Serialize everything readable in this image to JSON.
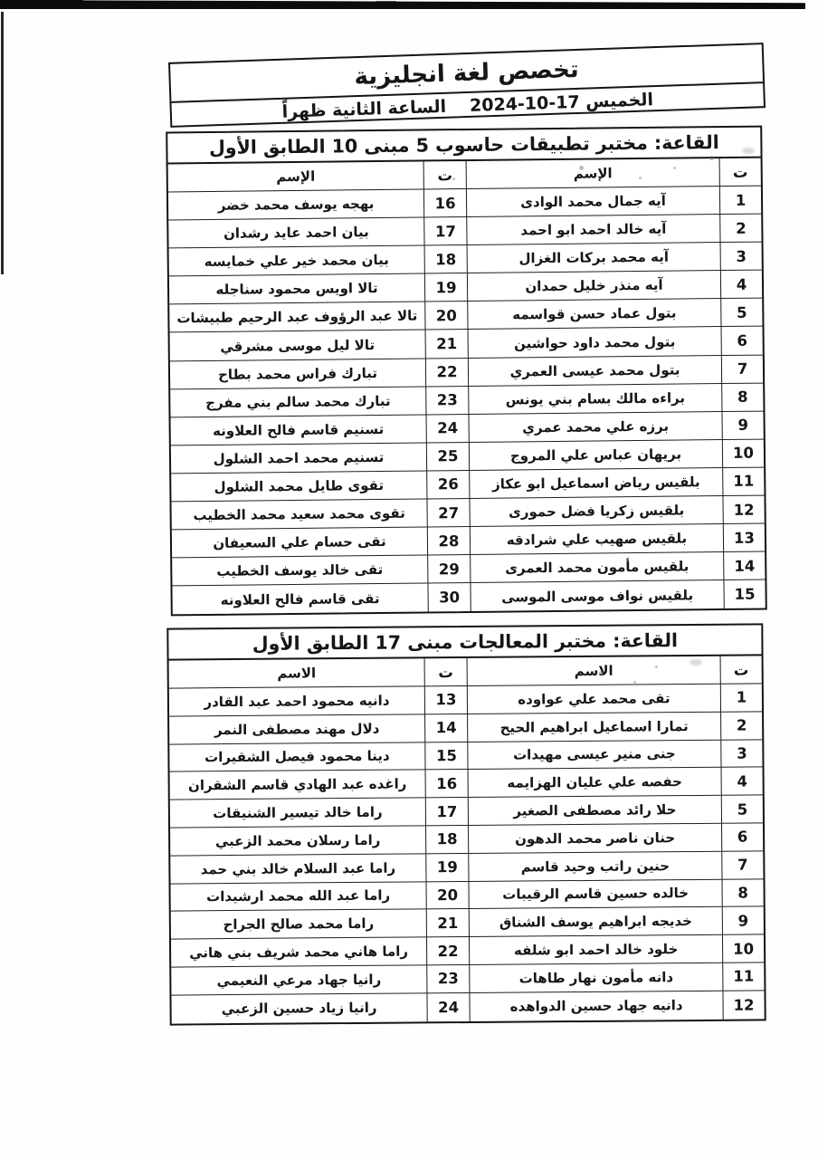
{
  "page": {
    "ink": "#141414",
    "background": "#fefefe"
  },
  "header": {
    "title": "تخصص لغة انجليزية",
    "day_and_date": "الخميس 17-10-2024",
    "time_text": "الساعة الثانية ظهراً"
  },
  "tables": [
    {
      "room": "القاعة: مختبر تطبيقات حاسوب 5 مبنى 10 الطابق الأول",
      "serial_header": "ت",
      "name_header": "الإسم",
      "rows": [
        {
          "right_no": "1",
          "right_name": "آيه جمال محمد الوادى",
          "left_no": "16",
          "left_name": "بهجه يوسف محمد خضر"
        },
        {
          "right_no": "2",
          "right_name": "آيه خالد احمد ابو احمد",
          "left_no": "17",
          "left_name": "بيان احمد عايد رشدان"
        },
        {
          "right_no": "3",
          "right_name": "آيه محمد بركات الغزال",
          "left_no": "18",
          "left_name": "بيان محمد خير علي خمايسه"
        },
        {
          "right_no": "4",
          "right_name": "آيه منذر خليل حمدان",
          "left_no": "19",
          "left_name": "تالا اويس محمود سناجله"
        },
        {
          "right_no": "5",
          "right_name": "بتول عماد حسن قواسمه",
          "left_no": "20",
          "left_name": "تالا عبد الرؤوف عبد الرحيم طبيشات"
        },
        {
          "right_no": "6",
          "right_name": "بتول محمد داود حواشين",
          "left_no": "21",
          "left_name": "تالا ليل موسى مشرقي"
        },
        {
          "right_no": "7",
          "right_name": "بتول محمد عيسى العمري",
          "left_no": "22",
          "left_name": "تبارك فراس محمد بطاح"
        },
        {
          "right_no": "8",
          "right_name": "براءه مالك بسام بني يونس",
          "left_no": "23",
          "left_name": "تبارك محمد سالم بني مفرج"
        },
        {
          "right_no": "9",
          "right_name": "برزه علي محمد عمري",
          "left_no": "24",
          "left_name": "تسنيم قاسم فالح العلاونه"
        },
        {
          "right_no": "10",
          "right_name": "بريهان عباس علي المروج",
          "left_no": "25",
          "left_name": "تسنيم محمد احمد الشلول"
        },
        {
          "right_no": "11",
          "right_name": "بلقيس رياض اسماعيل ابو عكاز",
          "left_no": "26",
          "left_name": "تقوى طايل محمد الشلول"
        },
        {
          "right_no": "12",
          "right_name": "بلقيس زكريا فضل حمورى",
          "left_no": "27",
          "left_name": "تقوى محمد سعيد محمد الخطيب"
        },
        {
          "right_no": "13",
          "right_name": "بلقيس صهيب علي شرادقه",
          "left_no": "28",
          "left_name": "تقى حسام علي السعيفان"
        },
        {
          "right_no": "14",
          "right_name": "بلقيس مأمون محمد العمرى",
          "left_no": "29",
          "left_name": "تقى خالد يوسف الخطيب"
        },
        {
          "right_no": "15",
          "right_name": "بلقيس نواف موسى الموسى",
          "left_no": "30",
          "left_name": "تقى قاسم فالح العلاونه"
        }
      ]
    },
    {
      "room": "القاعة: مختبر المعالجات مبنى 17 الطابق الأول",
      "serial_header": "ت",
      "name_header": "الاسم",
      "rows": [
        {
          "right_no": "1",
          "right_name": "تقى محمد علي عواوده",
          "left_no": "13",
          "left_name": "دانيه محمود احمد عبد القادر"
        },
        {
          "right_no": "2",
          "right_name": "تمارا اسماعيل ابراهيم الحيح",
          "left_no": "14",
          "left_name": "دلال مهند مصطفى النمر"
        },
        {
          "right_no": "3",
          "right_name": "جنى منير عيسى مهيدات",
          "left_no": "15",
          "left_name": "دينا محمود فيصل الشقيرات"
        },
        {
          "right_no": "4",
          "right_name": "حفصه علي عليان الهزايمه",
          "left_no": "16",
          "left_name": "راغده عبد الهادي قاسم الشقران"
        },
        {
          "right_no": "5",
          "right_name": "حلا رائد مصطفى الصغير",
          "left_no": "17",
          "left_name": "راما خالد تيسير الشنيقات"
        },
        {
          "right_no": "6",
          "right_name": "حنان ناصر محمد الدهون",
          "left_no": "18",
          "left_name": "راما رسلان محمد الزعبي"
        },
        {
          "right_no": "7",
          "right_name": "حنين راتب وحيد قاسم",
          "left_no": "19",
          "left_name": "راما عبد السلام خالد بني حمد"
        },
        {
          "right_no": "8",
          "right_name": "خالده حسين قاسم الرقيبات",
          "left_no": "20",
          "left_name": "راما عبد الله محمد ارشيدات"
        },
        {
          "right_no": "9",
          "right_name": "خديجه ابراهيم يوسف الشناق",
          "left_no": "21",
          "left_name": "راما محمد صالح الجراح"
        },
        {
          "right_no": "10",
          "right_name": "خلود خالد احمد ابو شلفه",
          "left_no": "22",
          "left_name": "راما هاني محمد شريف بني هاني"
        },
        {
          "right_no": "11",
          "right_name": "دانه مأمون نهار طاهات",
          "left_no": "23",
          "left_name": "رانيا جهاد مرعي النعيمي"
        },
        {
          "right_no": "12",
          "right_name": "دانيه جهاد حسين الدواهده",
          "left_no": "24",
          "left_name": "رانيا زياد حسين الزعبي"
        }
      ]
    }
  ]
}
